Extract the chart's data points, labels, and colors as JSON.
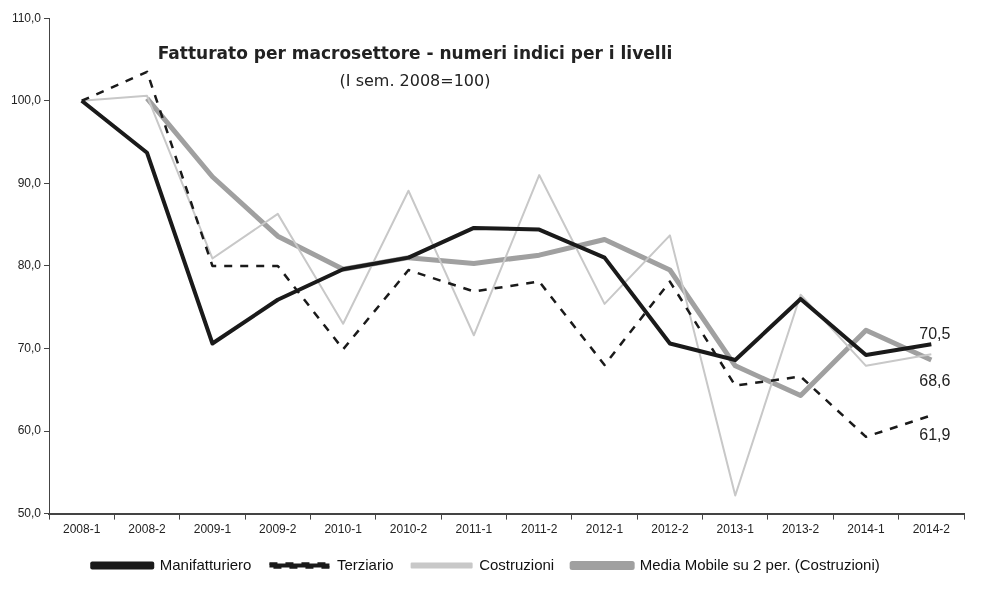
{
  "chart_data": {
    "type": "line",
    "title": "Fatturato per macrosettore - numeri indici per i livelli",
    "subtitle": "(I sem. 2008=100)",
    "categories": [
      "2008-1",
      "2008-2",
      "2009-1",
      "2009-2",
      "2010-1",
      "2010-2",
      "2011-1",
      "2011-2",
      "2012-1",
      "2012-2",
      "2013-1",
      "2013-2",
      "2014-1",
      "2014-2"
    ],
    "series": [
      {
        "name": "Manifatturiero",
        "color": "#1a1a1a",
        "line_style": "solid",
        "values": [
          100,
          93.7,
          70.6,
          75.9,
          79.6,
          81.0,
          84.6,
          84.4,
          81.0,
          70.6,
          68.6,
          76.0,
          69.2,
          70.5
        ],
        "value_labels": [
          null,
          null,
          null,
          null,
          null,
          null,
          null,
          null,
          null,
          null,
          null,
          null,
          null,
          "70,5"
        ]
      },
      {
        "name": "Terziario",
        "color": "#1a1a1a",
        "line_style": "dashed",
        "values": [
          100,
          103.5,
          80.0,
          80.0,
          69.9,
          79.5,
          76.9,
          78.1,
          68.0,
          78.1,
          65.5,
          66.6,
          59.3,
          61.9
        ],
        "value_labels": [
          null,
          null,
          null,
          null,
          null,
          null,
          null,
          null,
          null,
          null,
          null,
          null,
          null,
          "61,9"
        ]
      },
      {
        "name": "Costruzioni",
        "color": "#c8c8c8",
        "line_style": "solid",
        "values": [
          100,
          100.6,
          80.9,
          86.3,
          73.0,
          89.1,
          71.6,
          91.0,
          75.4,
          83.7,
          52.2,
          76.5,
          67.9,
          69.3
        ]
      },
      {
        "name": "Media Mobile su 2 per. (Costruzioni)",
        "color": "#a0a0a0",
        "line_style": "solid",
        "values": [
          null,
          100.3,
          90.8,
          83.6,
          79.6,
          81.0,
          80.3,
          81.3,
          83.2,
          79.5,
          67.9,
          64.3,
          72.2,
          68.6
        ],
        "value_labels": [
          null,
          null,
          null,
          null,
          null,
          null,
          null,
          null,
          null,
          null,
          null,
          null,
          null,
          "68,6"
        ]
      }
    ],
    "ylim": [
      50,
      110
    ],
    "yticks": [
      {
        "value": 50,
        "label": "50,0"
      },
      {
        "value": 60,
        "label": "60,0"
      },
      {
        "value": 70,
        "label": "70,0"
      },
      {
        "value": 80,
        "label": "80,0"
      },
      {
        "value": 90,
        "label": "90,0"
      },
      {
        "value": 100,
        "label": "100,0"
      },
      {
        "value": 110,
        "label": "110,0"
      }
    ],
    "grid": false,
    "legend": "bottom",
    "marker": "none"
  }
}
